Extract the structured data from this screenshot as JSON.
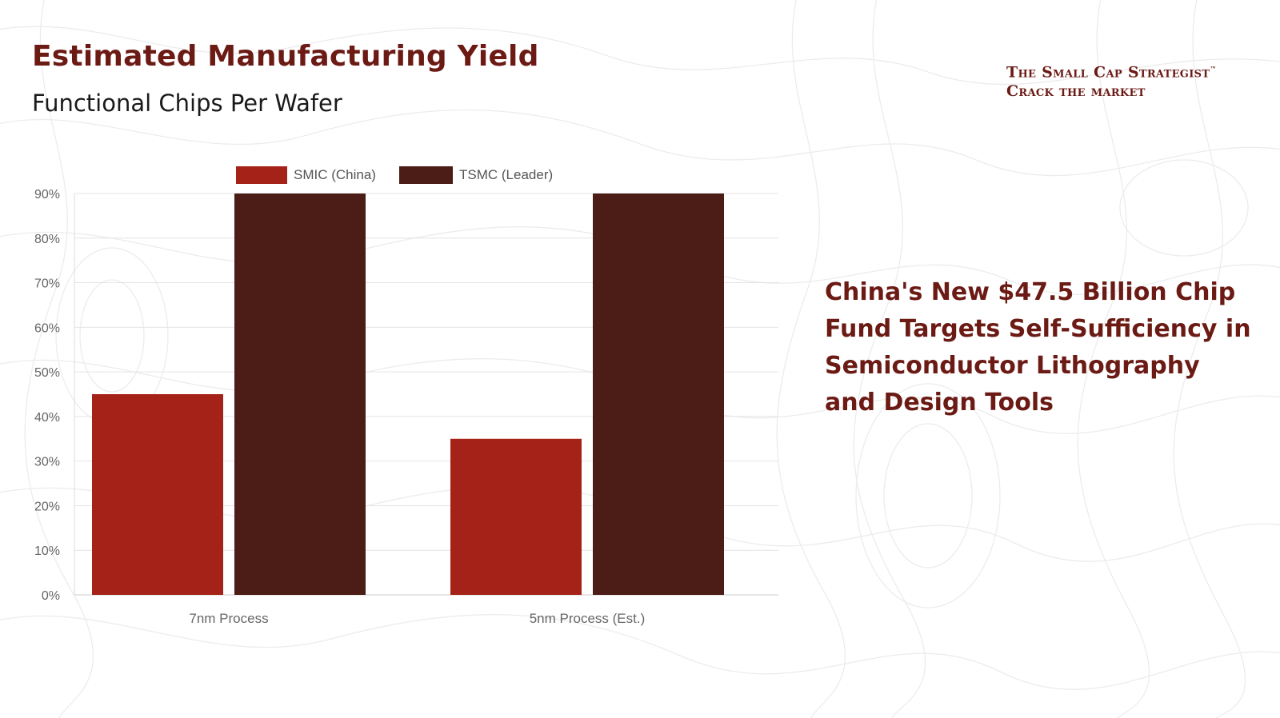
{
  "slide": {
    "title": "Estimated Manufacturing Yield",
    "subtitle": "Functional Chips Per Wafer",
    "headline": "China's New $47.5 Billion Chip Fund Targets Self-Sufficiency in Semiconductor Lithography and Design Tools"
  },
  "brand": {
    "line1": "The Small Cap Strategist",
    "trademark": "™",
    "line2": "Crack the market"
  },
  "colors": {
    "title": "#6b1a14",
    "smic": "#a52218",
    "tsmc": "#4c1c17",
    "grid": "#e4e4e4",
    "axis_text": "#666666"
  },
  "chart_data": {
    "type": "bar",
    "categories": [
      "7nm Process",
      "5nm Process (Est.)"
    ],
    "series": [
      {
        "name": "SMIC (China)",
        "values": [
          45,
          35
        ]
      },
      {
        "name": "TSMC (Leader)",
        "values": [
          90,
          90
        ]
      }
    ],
    "ylim": [
      0,
      90
    ],
    "yticks": [
      "0%",
      "10%",
      "20%",
      "30%",
      "40%",
      "50%",
      "60%",
      "70%",
      "80%",
      "90%"
    ],
    "grid": true,
    "legend": "top-center"
  }
}
